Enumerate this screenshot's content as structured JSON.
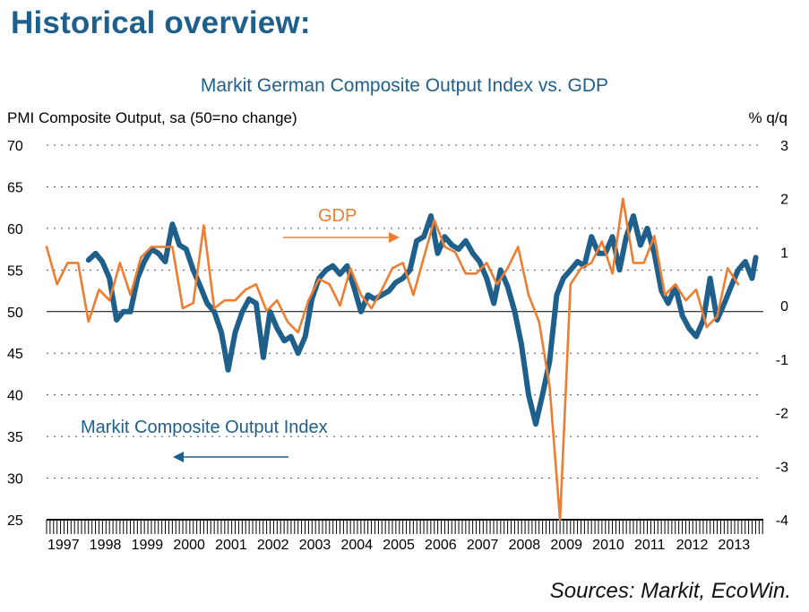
{
  "heading": "Historical overview:",
  "source": "Sources: Markit, EcoWin.",
  "colors": {
    "pmi": "#1f5f8b",
    "gdp": "#ed7d31",
    "heading": "#1f5f8b"
  },
  "chart_data": {
    "type": "line",
    "title": "Markit German Composite Output Index vs. GDP",
    "ylabel_left": "PMI Composite Output, sa (50=no change)",
    "ylabel_right": "% q/q",
    "ylim_left": [
      25,
      70
    ],
    "ylim_right": [
      -4,
      3
    ],
    "yticks_left": [
      "25",
      "30",
      "35",
      "40",
      "45",
      "50",
      "55",
      "60",
      "65",
      "70"
    ],
    "yticks_right": [
      "-4",
      "-3",
      "-2",
      "-1",
      "0",
      "1",
      "2",
      "3"
    ],
    "xticks": [
      "1997",
      "1998",
      "1999",
      "2000",
      "2001",
      "2002",
      "2003",
      "2004",
      "2005",
      "2006",
      "2007",
      "2008",
      "2009",
      "2010",
      "2011",
      "2012",
      "2013"
    ],
    "grid": "horizontal dotted",
    "reference_line": {
      "axis": "left",
      "value": 50
    },
    "annotations": [
      {
        "text": "GDP",
        "series": "GDP",
        "arrow": "right"
      },
      {
        "text": "Markit Composite Output Index",
        "series": "PMI",
        "arrow": "left"
      }
    ],
    "series": [
      {
        "name": "PMI",
        "axis": "left",
        "x": [
          1998.0,
          1998.17,
          1998.33,
          1998.5,
          1998.67,
          1998.83,
          1999.0,
          1999.17,
          1999.33,
          1999.5,
          1999.67,
          1999.83,
          2000.0,
          2000.17,
          2000.33,
          2000.5,
          2000.67,
          2000.83,
          2001.0,
          2001.17,
          2001.33,
          2001.5,
          2001.67,
          2001.83,
          2002.0,
          2002.17,
          2002.33,
          2002.5,
          2002.67,
          2002.83,
          2003.0,
          2003.17,
          2003.33,
          2003.5,
          2003.67,
          2003.83,
          2004.0,
          2004.17,
          2004.33,
          2004.5,
          2004.67,
          2004.83,
          2005.0,
          2005.17,
          2005.33,
          2005.5,
          2005.67,
          2005.83,
          2006.0,
          2006.17,
          2006.33,
          2006.5,
          2006.67,
          2006.83,
          2007.0,
          2007.17,
          2007.33,
          2007.5,
          2007.67,
          2007.83,
          2008.0,
          2008.17,
          2008.33,
          2008.5,
          2008.67,
          2008.83,
          2009.0,
          2009.17,
          2009.33,
          2009.5,
          2009.67,
          2009.83,
          2010.0,
          2010.17,
          2010.33,
          2010.5,
          2010.67,
          2010.83,
          2011.0,
          2011.17,
          2011.33,
          2011.5,
          2011.67,
          2011.83,
          2012.0,
          2012.17,
          2012.33,
          2012.5,
          2012.67,
          2012.83,
          2013.0,
          2013.17,
          2013.33,
          2013.5,
          2013.67,
          2013.83,
          2013.92
        ],
        "values": [
          56.2,
          57.0,
          56.0,
          54.0,
          49.0,
          50.0,
          50.0,
          54.0,
          56.0,
          57.5,
          57.0,
          56.0,
          60.5,
          58.0,
          57.5,
          55.0,
          53.0,
          51.0,
          50.0,
          47.5,
          43.0,
          47.5,
          50.0,
          51.5,
          51.0,
          44.5,
          50.0,
          48.0,
          46.5,
          47.0,
          45.0,
          47.0,
          51.5,
          54.0,
          55.0,
          55.5,
          54.5,
          55.5,
          53.0,
          50.0,
          52.0,
          51.5,
          52.0,
          52.5,
          53.5,
          54.0,
          55.0,
          58.5,
          59.0,
          61.5,
          57.0,
          59.0,
          58.0,
          57.5,
          58.5,
          57.0,
          56.0,
          54.0,
          51.0,
          55.0,
          53.0,
          50.0,
          46.0,
          40.0,
          36.5,
          40.0,
          44.0,
          52.0,
          54.0,
          55.0,
          56.0,
          55.5,
          59.0,
          57.0,
          57.0,
          59.0,
          55.0,
          59.0,
          61.5,
          58.0,
          60.0,
          57.0,
          52.5,
          51.0,
          53.0,
          49.5,
          48.0,
          47.0,
          49.0,
          54.0,
          49.0,
          51.0,
          53.0,
          55.0,
          56.0,
          54.0,
          56.5
        ]
      },
      {
        "name": "GDP",
        "axis": "right",
        "x": [
          1997.0,
          1997.25,
          1997.5,
          1997.75,
          1998.0,
          1998.25,
          1998.5,
          1998.75,
          1999.0,
          1999.25,
          1999.5,
          1999.75,
          2000.0,
          2000.25,
          2000.5,
          2000.75,
          2001.0,
          2001.25,
          2001.5,
          2001.75,
          2002.0,
          2002.25,
          2002.5,
          2002.75,
          2003.0,
          2003.25,
          2003.5,
          2003.75,
          2004.0,
          2004.25,
          2004.5,
          2004.75,
          2005.0,
          2005.25,
          2005.5,
          2005.75,
          2006.0,
          2006.25,
          2006.5,
          2006.75,
          2007.0,
          2007.25,
          2007.5,
          2007.75,
          2008.0,
          2008.25,
          2008.5,
          2008.75,
          2009.0,
          2009.25,
          2009.5,
          2009.75,
          2010.0,
          2010.25,
          2010.5,
          2010.75,
          2011.0,
          2011.25,
          2011.5,
          2011.75,
          2012.0,
          2012.25,
          2012.5,
          2012.75,
          2013.0,
          2013.25,
          2013.5
        ],
        "values": [
          1.1,
          0.4,
          0.8,
          0.8,
          -0.3,
          0.3,
          0.1,
          0.8,
          0.2,
          0.9,
          1.1,
          1.1,
          1.1,
          -0.05,
          0.05,
          1.5,
          -0.05,
          0.1,
          0.1,
          0.3,
          0.4,
          -0.1,
          0.1,
          -0.3,
          -0.5,
          0.1,
          0.5,
          0.4,
          0.0,
          0.7,
          0.2,
          -0.05,
          0.3,
          0.7,
          0.8,
          0.2,
          0.9,
          1.6,
          1.1,
          1.0,
          0.6,
          0.6,
          0.8,
          0.4,
          0.7,
          1.1,
          0.2,
          -0.3,
          -1.5,
          -4.0,
          0.4,
          0.7,
          0.8,
          1.2,
          0.6,
          2.0,
          0.8,
          0.8,
          1.3,
          0.2,
          0.4,
          0.1,
          0.3,
          -0.4,
          -0.2,
          0.7,
          0.4
        ]
      }
    ]
  }
}
